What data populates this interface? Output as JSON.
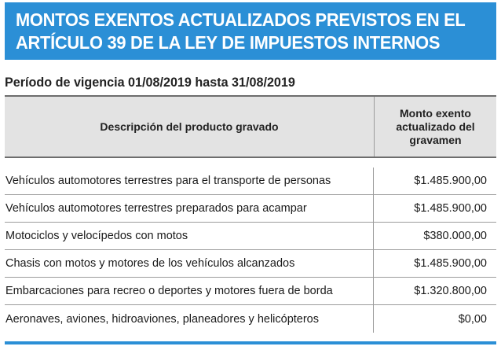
{
  "banner": {
    "title_line1": "MONTOS EXENTOS ACTUALIZADOS PREVISTOS EN EL",
    "title_line2": "ARTÍCULO 39 DE LA LEY DE IMPUESTOS INTERNOS",
    "background_color": "#2b8fd6"
  },
  "period": "Período de vigencia 01/08/2019 hasta 31/08/2019",
  "table": {
    "header": {
      "description": "Descripción del producto gravado",
      "amount_line1": "Monto exento",
      "amount_line2": "actualizado del",
      "amount_line3": "gravamen"
    },
    "rows": [
      {
        "description": "Vehículos automotores terrestres para  el transporte de personas",
        "amount": "$1.485.900,00"
      },
      {
        "description": "Vehículos automotores terrestres preparados para acampar",
        "amount": "$1.485.900,00"
      },
      {
        "description": "Motociclos y velocípedos con motos",
        "amount": "$380.000,00"
      },
      {
        "description": "Chasis con motos y motores de los vehículos alcanzados",
        "amount": "$1.485.900,00"
      },
      {
        "description": "Embarcaciones para recreo o deportes y motores fuera de borda",
        "amount": "$1.320.800,00"
      },
      {
        "description": "Aeronaves, aviones, hidroaviones, planeadores y helicópteros",
        "amount": "$0,00"
      }
    ]
  },
  "accent_color": "#2b8fd6",
  "header_bg_color": "#e3e3e3"
}
